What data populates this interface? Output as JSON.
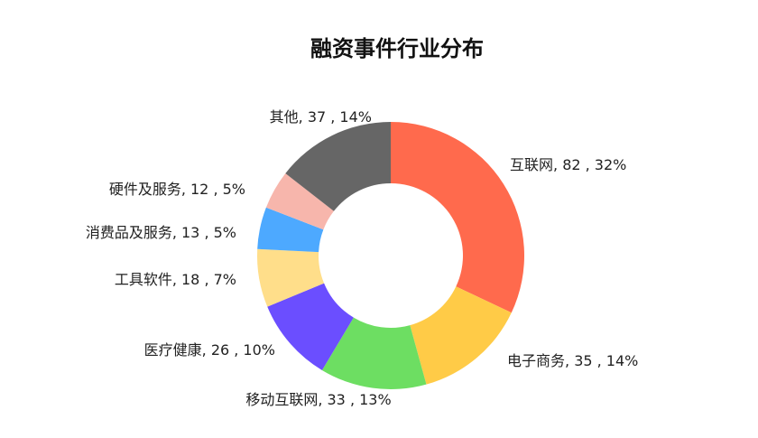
{
  "chart_data": {
    "type": "donut",
    "title": "融资事件行业分布",
    "categories": [
      "互联网",
      "电子商务",
      "移动互联网",
      "医疗健康",
      "工具软件",
      "消费品及服务",
      "硬件及服务",
      "其他"
    ],
    "values": [
      82,
      35,
      33,
      26,
      18,
      13,
      12,
      37
    ],
    "value_labels": [
      "82 , 32%",
      "35 , 14%",
      "33 , 13%",
      "26 , 10%",
      "18 , 7%",
      "13 , 5%",
      "12 , 5%",
      "37 , 14%"
    ],
    "separator": ", ",
    "colors": [
      "#FF6A4D",
      "#FFCB47",
      "#6DDE62",
      "#6B4EFF",
      "#FFDE8A",
      "#4DA9FF",
      "#F7B6AC",
      "#666666"
    ]
  }
}
